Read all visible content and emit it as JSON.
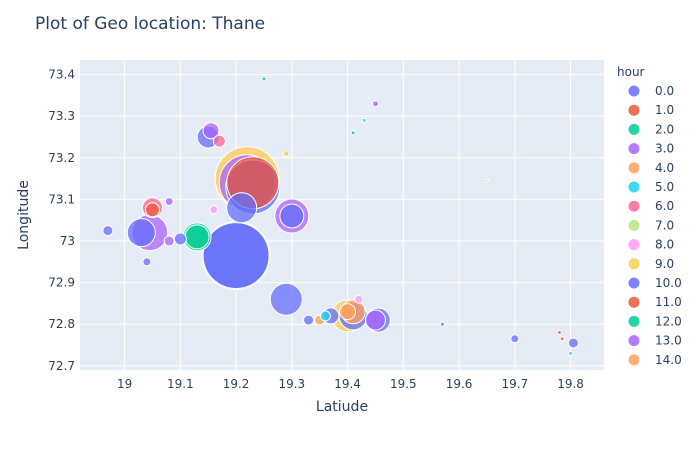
{
  "chart_data": {
    "type": "scatter",
    "title": "Plot of Geo location: Thane",
    "xlabel": "Latiude",
    "ylabel": "Longitude",
    "xlim": [
      18.92,
      19.86
    ],
    "ylim": [
      72.69,
      73.435
    ],
    "xticks": [
      19,
      19.1,
      19.2,
      19.3,
      19.4,
      19.5,
      19.6,
      19.7,
      19.8
    ],
    "xtick_labels": [
      "19",
      "19.1",
      "19.2",
      "19.3",
      "19.4",
      "19.5",
      "19.6",
      "19.7",
      "19.8"
    ],
    "yticks": [
      72.7,
      72.8,
      72.9,
      73,
      73.1,
      73.2,
      73.3,
      73.4
    ],
    "ytick_labels": [
      "72.7",
      "72.8",
      "72.9",
      "73",
      "73.1",
      "73.2",
      "73.3",
      "73.4"
    ],
    "grid": true,
    "legend": {
      "title": "hour",
      "placement": "right"
    },
    "background": "#e5ecf6",
    "series": [
      {
        "name": "0.0",
        "color": "#636efa",
        "points": [
          [
            19.03,
            73.02,
            14
          ],
          [
            19.2,
            72.965,
            34
          ],
          [
            19.3,
            73.06,
            12
          ]
        ]
      },
      {
        "name": "1.0",
        "color": "#ef553b",
        "points": [
          [
            19.05,
            73.075,
            7
          ],
          [
            19.23,
            73.14,
            26
          ],
          [
            19.78,
            72.78,
            2
          ]
        ]
      },
      {
        "name": "2.0",
        "color": "#00cc96",
        "points": [
          [
            19.13,
            73.01,
            12
          ],
          [
            19.25,
            73.39,
            2
          ],
          [
            19.41,
            73.26,
            2
          ]
        ]
      },
      {
        "name": "3.0",
        "color": "#ab63fa",
        "points": [
          [
            19.22,
            73.14,
            28
          ],
          [
            19.08,
            73.0,
            5
          ],
          [
            19.45,
            72.81,
            10
          ]
        ]
      },
      {
        "name": "4.0",
        "color": "#ffa15a",
        "points": [
          [
            19.35,
            72.81,
            5
          ],
          [
            19.4,
            72.83,
            8
          ]
        ]
      },
      {
        "name": "5.0",
        "color": "#19d3f3",
        "points": [
          [
            19.43,
            73.29,
            2
          ],
          [
            19.36,
            72.82,
            5
          ],
          [
            19.8,
            72.73,
            2
          ]
        ]
      },
      {
        "name": "6.0",
        "color": "#ff6692",
        "points": [
          [
            19.05,
            73.08,
            10
          ],
          [
            19.17,
            73.24,
            6
          ]
        ]
      },
      {
        "name": "7.0",
        "color": "#b6e880",
        "points": [
          [
            19.65,
            73.145,
            1.5
          ]
        ]
      },
      {
        "name": "8.0",
        "color": "#ff97ff",
        "points": [
          [
            19.16,
            73.075,
            4
          ],
          [
            19.42,
            72.86,
            4
          ]
        ]
      },
      {
        "name": "9.0",
        "color": "#fecb52",
        "points": [
          [
            19.22,
            73.15,
            32
          ],
          [
            19.4,
            72.82,
            16
          ],
          [
            19.29,
            73.21,
            3
          ]
        ]
      },
      {
        "name": "10.0",
        "color": "#636efa",
        "points": [
          [
            19.2,
            72.965,
            33
          ],
          [
            19.23,
            73.13,
            27
          ],
          [
            19.21,
            73.08,
            15
          ],
          [
            19.29,
            72.86,
            16
          ],
          [
            19.41,
            72.82,
            14
          ],
          [
            19.15,
            73.25,
            11
          ],
          [
            19.455,
            72.81,
            12
          ],
          [
            18.97,
            73.025,
            5
          ],
          [
            19.57,
            72.8,
            2
          ],
          [
            19.7,
            72.765,
            4
          ],
          [
            19.805,
            72.755,
            5
          ],
          [
            19.1,
            73.005,
            6
          ],
          [
            19.04,
            72.95,
            4
          ],
          [
            19.37,
            72.82,
            8
          ],
          [
            19.33,
            72.81,
            5
          ]
        ]
      },
      {
        "name": "11.0",
        "color": "#ef553b",
        "points": [
          [
            19.785,
            72.765,
            2
          ]
        ]
      },
      {
        "name": "12.0",
        "color": "#00cc96",
        "points": [
          [
            19.13,
            73.01,
            14
          ]
        ]
      },
      {
        "name": "13.0",
        "color": "#ab63fa",
        "points": [
          [
            19.3,
            73.06,
            17
          ],
          [
            19.155,
            73.265,
            8
          ],
          [
            19.045,
            73.02,
            18
          ],
          [
            19.45,
            73.33,
            3
          ],
          [
            19.08,
            73.095,
            4
          ]
        ]
      },
      {
        "name": "14.0",
        "color": "#ffa15a",
        "points": [
          [
            19.41,
            72.83,
            12
          ]
        ]
      }
    ]
  }
}
